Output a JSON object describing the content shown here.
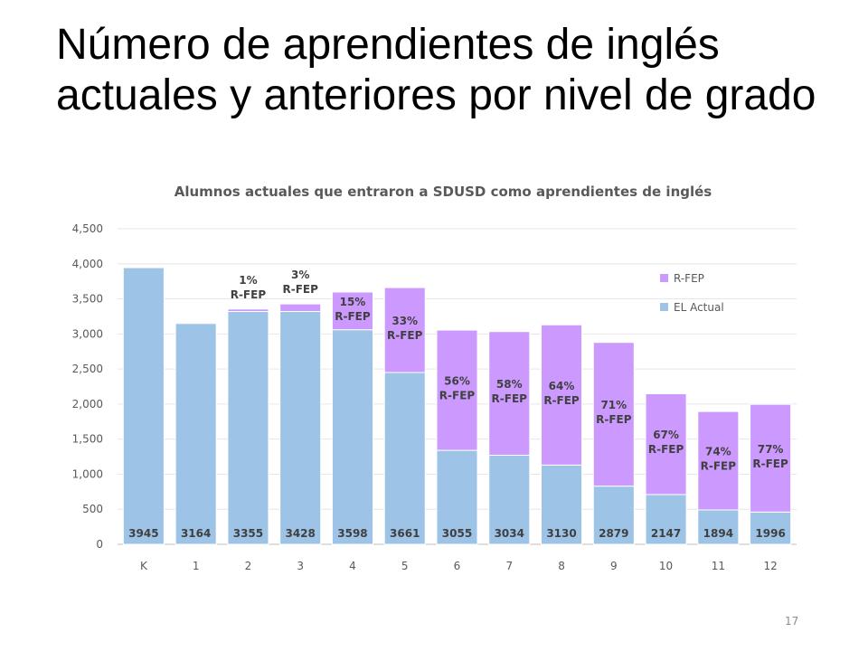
{
  "slide": {
    "title": "Número de aprendientes de inglés actuales y anteriores por nivel de grado",
    "page_number": "17"
  },
  "chart_data": {
    "type": "bar",
    "stacked": true,
    "title": "Alumnos actuales que entraron a SDUSD como aprendientes de inglés",
    "xlabel": "",
    "ylabel": "",
    "ylim": [
      0,
      4500
    ],
    "yticks": [
      0,
      500,
      1000,
      1500,
      2000,
      2500,
      3000,
      3500,
      4000,
      4500
    ],
    "ytick_labels": [
      "0",
      "500",
      "1,000",
      "1,500",
      "2,000",
      "2,500",
      "3,000",
      "3,500",
      "4,000",
      "4,500"
    ],
    "grid": true,
    "legend_position": "top-right",
    "categories": [
      "K",
      "1",
      "2",
      "3",
      "4",
      "5",
      "6",
      "7",
      "8",
      "9",
      "10",
      "11",
      "12"
    ],
    "totals": [
      3945,
      3164,
      3355,
      3428,
      3598,
      3661,
      3055,
      3034,
      3130,
      2879,
      2147,
      1894,
      1996
    ],
    "series": [
      {
        "name": "EL Actual",
        "color": "#9dc3e6",
        "values": [
          3945,
          3150,
          3320,
          3320,
          3060,
          2450,
          1340,
          1270,
          1130,
          830,
          710,
          490,
          460
        ]
      },
      {
        "name": "R-FEP",
        "color": "#cc99ff",
        "values": [
          0,
          14,
          35,
          108,
          538,
          1211,
          1715,
          1764,
          2000,
          2049,
          1437,
          1404,
          1536
        ]
      }
    ],
    "rfep_labels": [
      "",
      "",
      "1%",
      "3%",
      "15%",
      "33%",
      "56%",
      "58%",
      "64%",
      "71%",
      "67%",
      "74%",
      "77%"
    ],
    "rfep_label_suffix": "R-FEP"
  }
}
